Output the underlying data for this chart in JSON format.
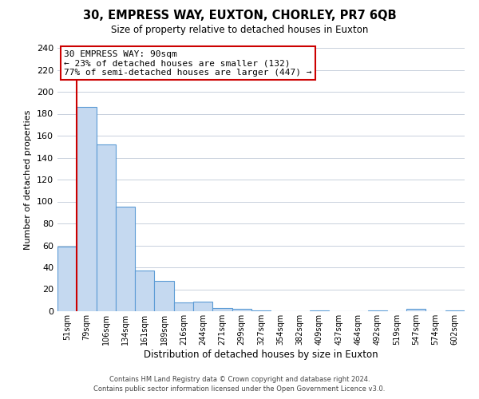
{
  "title": "30, EMPRESS WAY, EUXTON, CHORLEY, PR7 6QB",
  "subtitle": "Size of property relative to detached houses in Euxton",
  "xlabel": "Distribution of detached houses by size in Euxton",
  "ylabel": "Number of detached properties",
  "bin_labels": [
    "51sqm",
    "79sqm",
    "106sqm",
    "134sqm",
    "161sqm",
    "189sqm",
    "216sqm",
    "244sqm",
    "271sqm",
    "299sqm",
    "327sqm",
    "354sqm",
    "382sqm",
    "409sqm",
    "437sqm",
    "464sqm",
    "492sqm",
    "519sqm",
    "547sqm",
    "574sqm",
    "602sqm"
  ],
  "bar_values": [
    59,
    186,
    152,
    95,
    37,
    28,
    8,
    9,
    3,
    2,
    1,
    0,
    0,
    1,
    0,
    0,
    1,
    0,
    2,
    0,
    1
  ],
  "bar_color": "#c5d9f0",
  "bar_edge_color": "#5b9bd5",
  "vline_x": 1.0,
  "vline_color": "#cc0000",
  "ylim": [
    0,
    240
  ],
  "yticks": [
    0,
    20,
    40,
    60,
    80,
    100,
    120,
    140,
    160,
    180,
    200,
    220,
    240
  ],
  "annotation_title": "30 EMPRESS WAY: 90sqm",
  "annotation_line1": "← 23% of detached houses are smaller (132)",
  "annotation_line2": "77% of semi-detached houses are larger (447) →",
  "annotation_box_color": "#ffffff",
  "annotation_box_edge_color": "#cc0000",
  "footer1": "Contains HM Land Registry data © Crown copyright and database right 2024.",
  "footer2": "Contains public sector information licensed under the Open Government Licence v3.0.",
  "background_color": "#ffffff",
  "grid_color": "#c8d0dc",
  "fig_width": 6.0,
  "fig_height": 5.0,
  "dpi": 100
}
